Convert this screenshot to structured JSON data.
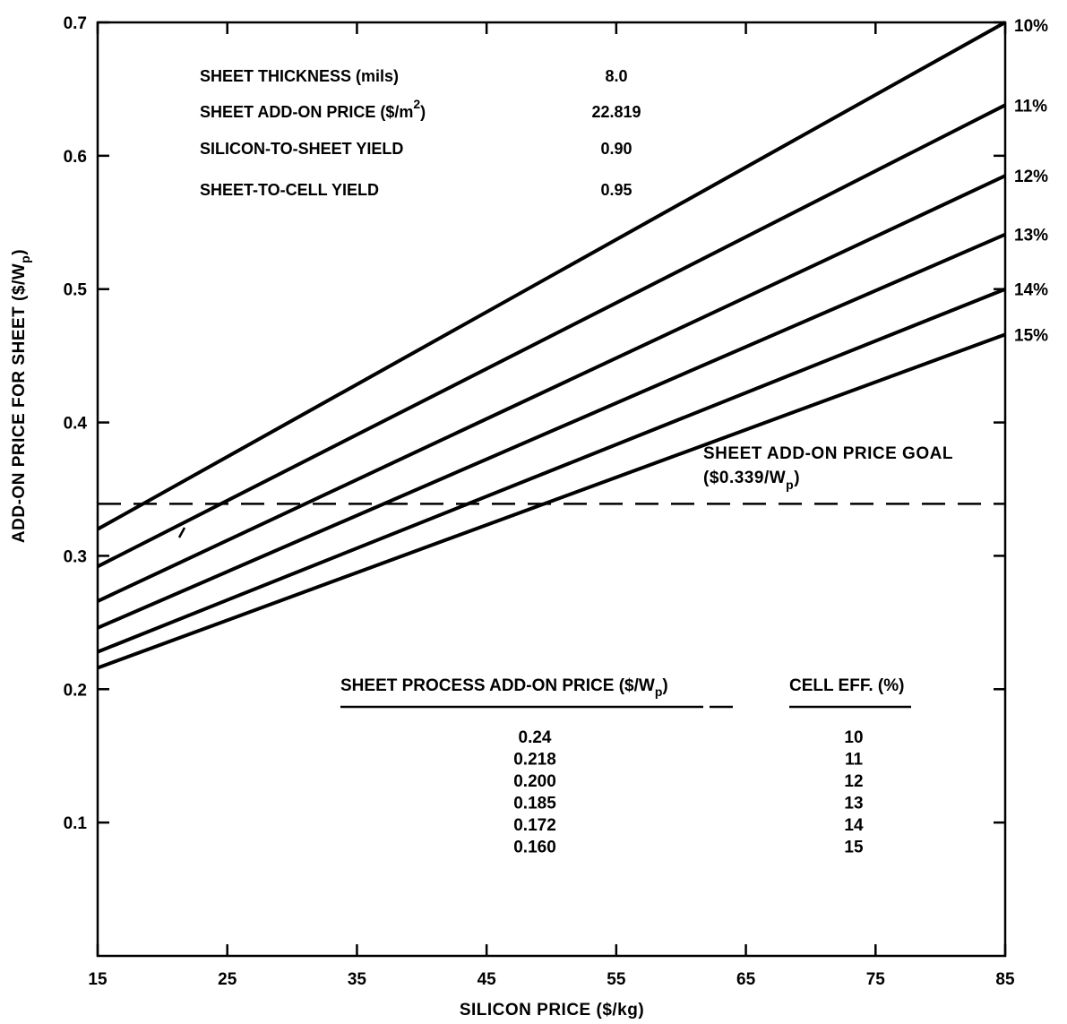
{
  "chart_data": {
    "type": "line",
    "xlabel": "SILICON PRICE ($/kg)",
    "ylabel": "ADD-ON PRICE FOR SHEET ($/W",
    "ylabel_sub": "p",
    "ylabel_close": ")",
    "xlim": [
      15,
      85
    ],
    "ylim": [
      0.0,
      0.7
    ],
    "x_ticks": [
      15,
      25,
      35,
      45,
      55,
      65,
      75,
      85
    ],
    "x_tick_labels": [
      "15",
      "25",
      "35",
      "45",
      "55",
      "65",
      "75",
      "85"
    ],
    "y_ticks": [
      0.1,
      0.2,
      0.3,
      0.4,
      0.5,
      0.6,
      0.7
    ],
    "y_tick_labels": [
      "0.1",
      "0.2",
      "0.3",
      "0.4",
      "0.5",
      "0.6",
      "0.7"
    ],
    "series": [
      {
        "name": "10%",
        "x": [
          15,
          85
        ],
        "y": [
          0.32,
          0.7
        ]
      },
      {
        "name": "11%",
        "x": [
          15,
          85
        ],
        "y": [
          0.292,
          0.638
        ]
      },
      {
        "name": "12%",
        "x": [
          15,
          85
        ],
        "y": [
          0.266,
          0.585
        ]
      },
      {
        "name": "13%",
        "x": [
          15,
          85
        ],
        "y": [
          0.246,
          0.541
        ]
      },
      {
        "name": "14%",
        "x": [
          15,
          85
        ],
        "y": [
          0.228,
          0.5
        ]
      },
      {
        "name": "15%",
        "x": [
          15,
          85
        ],
        "y": [
          0.216,
          0.466
        ]
      }
    ],
    "goal_line": {
      "y": 0.339,
      "label_line1": "SHEET ADD-ON PRICE GOAL",
      "label_line2": "($0.339/W",
      "label_sub": "p",
      "label_close": ")"
    },
    "info_box": [
      {
        "label": "SHEET THICKNESS (mils)",
        "value": "8.0"
      },
      {
        "label": "SHEET ADD-ON PRICE ($/m",
        "label_sup": "2",
        "label_close": ")",
        "value": "22.819"
      },
      {
        "label": "SILICON-TO-SHEET YIELD",
        "value": "0.90"
      },
      {
        "label": "SHEET-TO-CELL YIELD",
        "value": "0.95"
      }
    ],
    "table": {
      "col1_header": "SHEET PROCESS ADD-ON PRICE ($/W",
      "col1_header_sub": "p",
      "col1_header_close": ")",
      "col2_header": "CELL EFF. (%)",
      "rows": [
        {
          "price": "0.24",
          "eff": "10"
        },
        {
          "price": "0.218",
          "eff": "11"
        },
        {
          "price": "0.200",
          "eff": "12"
        },
        {
          "price": "0.185",
          "eff": "13"
        },
        {
          "price": "0.172",
          "eff": "14"
        },
        {
          "price": "0.160",
          "eff": "15"
        }
      ]
    },
    "grid": false,
    "legend": "right-edge line labels"
  }
}
